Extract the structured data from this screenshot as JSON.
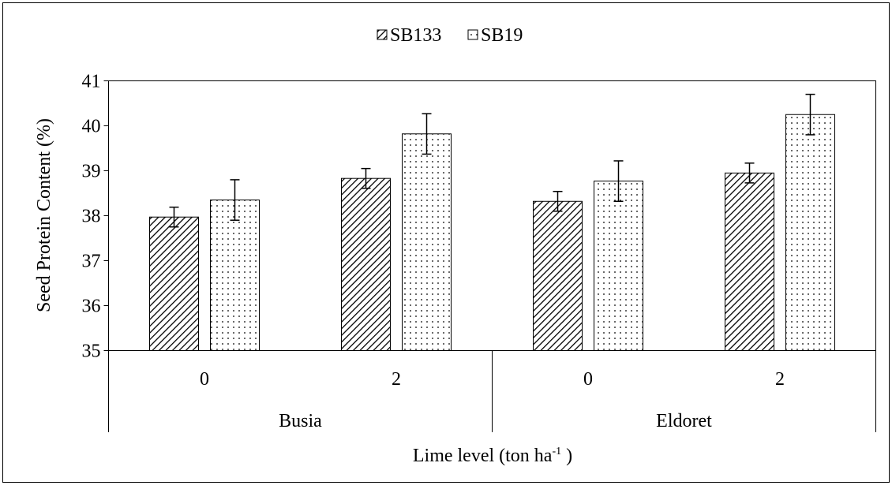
{
  "chart_data": {
    "type": "bar",
    "title": "",
    "ylabel": "Seed Protein Content (%)",
    "xlabel_main": "Lime level (ton ha",
    "xlabel_sup": "-1",
    "xlabel_tail": " )",
    "ylim": [
      35,
      41
    ],
    "yticks": [
      "35",
      "36",
      "37",
      "38",
      "39",
      "40",
      "41"
    ],
    "grid": false,
    "legend_position": "top-center",
    "groups": [
      "Busia",
      "Eldoret"
    ],
    "categories": [
      "0",
      "2",
      "0",
      "2"
    ],
    "series": [
      {
        "name": "SB133",
        "pattern": "diagonal-hatch",
        "values": [
          37.97,
          38.83,
          38.32,
          38.95
        ],
        "errors": [
          0.22,
          0.22,
          0.22,
          0.22
        ]
      },
      {
        "name": "SB19",
        "pattern": "dots",
        "values": [
          38.35,
          39.82,
          38.77,
          40.25
        ],
        "errors": [
          0.45,
          0.45,
          0.45,
          0.45
        ]
      }
    ],
    "colors": {
      "bar_stroke": "#000000",
      "axis": "#000000",
      "background": "#ffffff"
    }
  }
}
